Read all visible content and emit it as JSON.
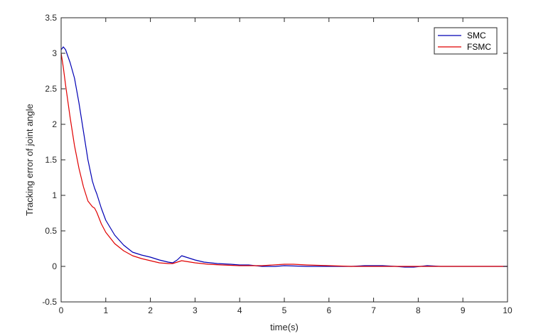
{
  "chart_data": {
    "type": "line",
    "title": "",
    "xlabel": "time(s)",
    "ylabel": "Tracking error of joint angle",
    "xlim": [
      0,
      10
    ],
    "ylim": [
      -0.5,
      3.5
    ],
    "xticks": [
      0,
      1,
      2,
      3,
      4,
      5,
      6,
      7,
      8,
      9,
      10
    ],
    "yticks": [
      -0.5,
      0,
      0.5,
      1,
      1.5,
      2,
      2.5,
      3,
      3.5
    ],
    "ytick_labels": [
      "-0.5",
      "0",
      "0.5",
      "1",
      "1.5",
      "2",
      "2.5",
      "3",
      "3.5"
    ],
    "grid": false,
    "legend_position": "top-right",
    "series": [
      {
        "name": "SMC",
        "color": "#0000b4",
        "x": [
          0,
          0.05,
          0.1,
          0.15,
          0.2,
          0.3,
          0.4,
          0.5,
          0.6,
          0.7,
          0.75,
          0.8,
          0.9,
          1.0,
          1.2,
          1.4,
          1.6,
          1.8,
          2.0,
          2.2,
          2.4,
          2.5,
          2.6,
          2.7,
          2.8,
          3.0,
          3.2,
          3.5,
          3.8,
          4.0,
          4.2,
          4.5,
          4.8,
          5.0,
          5.5,
          6.0,
          6.5,
          6.8,
          7.0,
          7.2,
          7.5,
          7.7,
          7.9,
          8.2,
          8.5,
          8.8,
          9.0,
          9.5,
          10.0
        ],
        "y": [
          3.05,
          3.09,
          3.05,
          2.96,
          2.87,
          2.65,
          2.3,
          1.9,
          1.5,
          1.2,
          1.1,
          1.02,
          0.82,
          0.65,
          0.44,
          0.3,
          0.2,
          0.16,
          0.13,
          0.09,
          0.06,
          0.05,
          0.09,
          0.15,
          0.13,
          0.09,
          0.06,
          0.04,
          0.03,
          0.02,
          0.02,
          0.0,
          0.0,
          0.01,
          0.0,
          0.0,
          0.0,
          0.01,
          0.01,
          0.01,
          0.0,
          -0.01,
          -0.01,
          0.01,
          0.0,
          0.0,
          0.0,
          0.0,
          0.0
        ]
      },
      {
        "name": "FSMC",
        "color": "#e00000",
        "x": [
          0,
          0.05,
          0.1,
          0.2,
          0.3,
          0.4,
          0.5,
          0.6,
          0.7,
          0.75,
          0.8,
          0.9,
          1.0,
          1.2,
          1.4,
          1.6,
          1.8,
          2.0,
          2.2,
          2.4,
          2.5,
          2.6,
          2.7,
          2.8,
          3.0,
          3.3,
          3.6,
          4.0,
          4.5,
          5.0,
          5.2,
          5.5,
          6.0,
          6.5,
          7.0,
          7.5,
          8.0,
          8.5,
          9.0,
          9.5,
          10.0
        ],
        "y": [
          3.0,
          2.8,
          2.55,
          2.1,
          1.7,
          1.38,
          1.12,
          0.92,
          0.84,
          0.82,
          0.76,
          0.6,
          0.48,
          0.32,
          0.22,
          0.15,
          0.11,
          0.08,
          0.05,
          0.04,
          0.04,
          0.06,
          0.08,
          0.07,
          0.05,
          0.03,
          0.02,
          0.01,
          0.01,
          0.03,
          0.03,
          0.02,
          0.01,
          0.0,
          0.0,
          0.0,
          0.0,
          0.0,
          0.0,
          0.0,
          0.0
        ]
      }
    ]
  }
}
